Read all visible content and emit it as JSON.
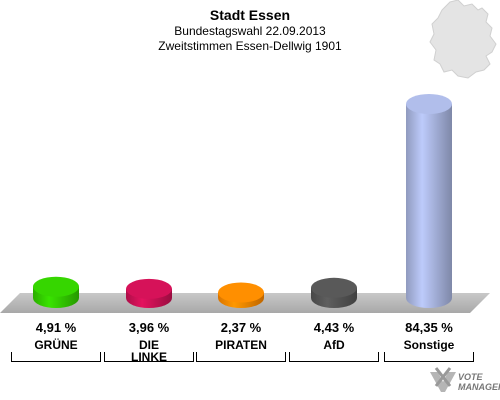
{
  "header": {
    "title": "Stadt Essen",
    "subtitle": "Bundestagswahl 22.09.2013",
    "subtitle2": "Zweitstimmen Essen-Dellwig 1901"
  },
  "watermark": {
    "line1": "VOTE",
    "line2": "MANAGER"
  },
  "chart_data": {
    "type": "bar",
    "categories": [
      "GRÜNE",
      "DIE LINKE",
      "PIRATEN",
      "AfD",
      "Sonstige"
    ],
    "values": [
      4.91,
      3.96,
      2.37,
      4.43,
      84.35
    ],
    "value_labels": [
      "4,91 %",
      "3,96 %",
      "2,37 %",
      "4,43 %",
      "84,35 %"
    ],
    "category_lines": [
      [
        "GRÜNE"
      ],
      [
        "DIE",
        "LINKE"
      ],
      [
        "PIRATEN"
      ],
      [
        "AfD"
      ],
      [
        "Sonstige"
      ]
    ],
    "colors": [
      "#33cc00",
      "#cc1155",
      "#ff8800",
      "#555555",
      "#a9b5e0"
    ],
    "ylim": [
      0,
      100
    ],
    "bar_style": "3d-cylinder",
    "grid": false,
    "legend": "none"
  }
}
